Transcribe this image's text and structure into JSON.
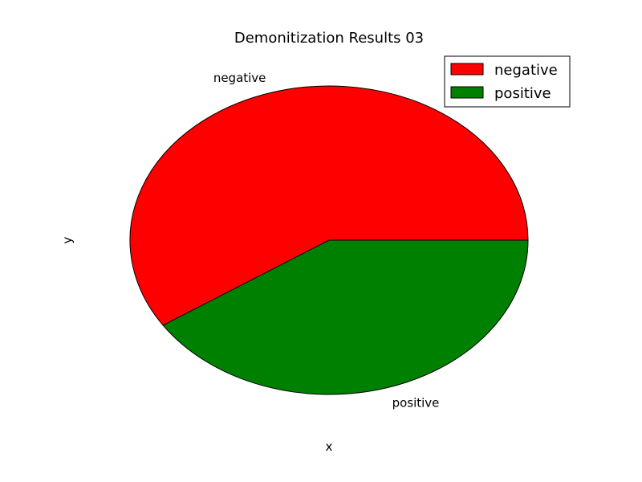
{
  "chart_data": {
    "type": "pie",
    "title": "Demonitization Results 03",
    "xlabel": "x",
    "ylabel": "y",
    "start_angle_deg": 0,
    "direction": "counterclockwise",
    "slices": [
      {
        "label": "negative",
        "value": 59.3,
        "color": "#ff0000"
      },
      {
        "label": "positive",
        "value": 40.7,
        "color": "#008000"
      }
    ],
    "legend": {
      "placement": "top-right",
      "entries": [
        "negative",
        "positive"
      ]
    }
  }
}
